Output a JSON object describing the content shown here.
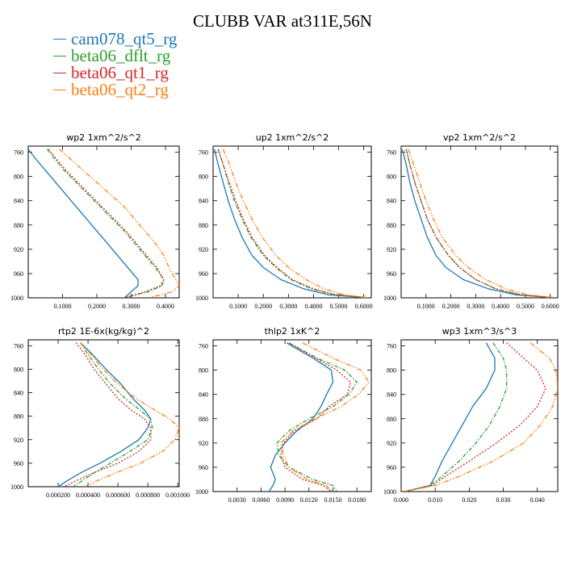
{
  "figure": {
    "title": "CLUBB VAR at311E,56N"
  },
  "legend": [
    {
      "name": "cam078_qt5_rg",
      "color": "#1f77b4"
    },
    {
      "name": "beta06_dflt_rg",
      "color": "#2ca02c"
    },
    {
      "name": "beta06_qt1_rg",
      "color": "#d62728"
    },
    {
      "name": "beta06_qt2_rg",
      "color": "#ff7f0e"
    }
  ],
  "chart_data": [
    {
      "type": "line",
      "title": "wp2  1xm^2/s^2",
      "xlim": [
        0.0,
        0.44
      ],
      "ylim": [
        1000,
        750
      ],
      "y_inverted": true,
      "xticks": [
        0.1,
        0.2,
        0.3,
        0.4
      ],
      "xtick_labels": [
        "0.1000",
        "0.2000",
        "0.3000",
        "0.4000"
      ],
      "yticks": [
        760,
        800,
        840,
        880,
        920,
        960,
        1000
      ],
      "y": [
        755,
        770,
        790,
        810,
        830,
        850,
        870,
        890,
        910,
        930,
        950,
        970,
        980,
        990,
        1000
      ],
      "series": [
        {
          "name": "cam078_qt5_rg",
          "x": [
            0.0,
            0.02,
            0.05,
            0.08,
            0.11,
            0.14,
            0.17,
            0.2,
            0.23,
            0.26,
            0.29,
            0.32,
            0.32,
            0.3,
            0.28
          ]
        },
        {
          "name": "beta06_dflt_rg",
          "x": [
            0.055,
            0.075,
            0.105,
            0.14,
            0.175,
            0.21,
            0.245,
            0.28,
            0.31,
            0.34,
            0.37,
            0.395,
            0.39,
            0.35,
            0.28
          ]
        },
        {
          "name": "beta06_qt1_rg",
          "x": [
            0.06,
            0.08,
            0.11,
            0.145,
            0.18,
            0.215,
            0.25,
            0.285,
            0.315,
            0.345,
            0.375,
            0.395,
            0.385,
            0.34,
            0.28
          ]
        },
        {
          "name": "beta06_qt2_rg",
          "x": [
            0.09,
            0.12,
            0.16,
            0.2,
            0.24,
            0.28,
            0.31,
            0.34,
            0.37,
            0.395,
            0.41,
            0.43,
            0.44,
            0.42,
            0.35
          ]
        }
      ]
    },
    {
      "type": "line",
      "title": "up2  1xm^2/s^2",
      "xlim": [
        0.0,
        0.63
      ],
      "ylim": [
        1000,
        750
      ],
      "y_inverted": true,
      "xticks": [
        0.1,
        0.2,
        0.3,
        0.4,
        0.5,
        0.6
      ],
      "xtick_labels": [
        "0.1000",
        "0.2000",
        "0.3000",
        "0.4000",
        "0.5000",
        "0.6000"
      ],
      "yticks": [
        760,
        800,
        840,
        880,
        920,
        960,
        1000
      ],
      "y": [
        755,
        780,
        810,
        840,
        870,
        900,
        930,
        950,
        970,
        985,
        995,
        1000
      ],
      "series": [
        {
          "name": "cam078_qt5_rg",
          "x": [
            0.005,
            0.02,
            0.04,
            0.06,
            0.085,
            0.115,
            0.155,
            0.2,
            0.27,
            0.36,
            0.46,
            0.62
          ]
        },
        {
          "name": "beta06_dflt_rg",
          "x": [
            0.02,
            0.04,
            0.06,
            0.085,
            0.115,
            0.15,
            0.2,
            0.25,
            0.31,
            0.39,
            0.48,
            0.62
          ]
        },
        {
          "name": "beta06_qt1_rg",
          "x": [
            0.02,
            0.04,
            0.065,
            0.09,
            0.12,
            0.155,
            0.205,
            0.255,
            0.315,
            0.4,
            0.49,
            0.62
          ]
        },
        {
          "name": "beta06_qt2_rg",
          "x": [
            0.04,
            0.065,
            0.09,
            0.12,
            0.155,
            0.195,
            0.25,
            0.3,
            0.37,
            0.44,
            0.52,
            0.62
          ]
        }
      ]
    },
    {
      "type": "line",
      "title": "vp2  1xm^2/s^2",
      "xlim": [
        0.0,
        0.63
      ],
      "ylim": [
        1000,
        750
      ],
      "y_inverted": true,
      "xticks": [
        0.1,
        0.2,
        0.3,
        0.4,
        0.5,
        0.6
      ],
      "xtick_labels": [
        "0.1000",
        "0.2000",
        "0.3000",
        "0.4000",
        "0.5000",
        "0.6000"
      ],
      "yticks": [
        760,
        800,
        840,
        880,
        920,
        960,
        1000
      ],
      "y": [
        755,
        780,
        810,
        840,
        870,
        900,
        930,
        950,
        970,
        985,
        995,
        1000
      ],
      "series": [
        {
          "name": "cam078_qt5_rg",
          "x": [
            0.005,
            0.02,
            0.035,
            0.055,
            0.08,
            0.105,
            0.14,
            0.18,
            0.25,
            0.35,
            0.46,
            0.62
          ]
        },
        {
          "name": "beta06_dflt_rg",
          "x": [
            0.02,
            0.035,
            0.055,
            0.08,
            0.105,
            0.14,
            0.19,
            0.235,
            0.3,
            0.38,
            0.48,
            0.62
          ]
        },
        {
          "name": "beta06_qt1_rg",
          "x": [
            0.02,
            0.035,
            0.055,
            0.08,
            0.105,
            0.14,
            0.19,
            0.235,
            0.3,
            0.38,
            0.48,
            0.62
          ]
        },
        {
          "name": "beta06_qt2_rg",
          "x": [
            0.03,
            0.05,
            0.075,
            0.1,
            0.13,
            0.165,
            0.22,
            0.27,
            0.34,
            0.42,
            0.51,
            0.62
          ]
        }
      ]
    },
    {
      "type": "line",
      "title": "rtp2  1E-6x(kg/kg)^2",
      "xlim": [
        0.0,
        0.00101
      ],
      "ylim": [
        1000,
        750
      ],
      "y_inverted": true,
      "xticks": [
        0.0002,
        0.0004,
        0.0006,
        0.0008,
        0.001
      ],
      "xtick_labels": [
        "0.000200",
        "0.000400",
        "0.000600",
        "0.000800",
        "0.001000"
      ],
      "yticks": [
        760,
        800,
        840,
        880,
        920,
        960,
        1000
      ],
      "y": [
        755,
        775,
        800,
        825,
        850,
        870,
        885,
        900,
        920,
        940,
        960,
        975,
        990,
        1000
      ],
      "series": [
        {
          "name": "cam078_qt5_rg",
          "x": [
            0.00035,
            0.00043,
            0.00052,
            0.00062,
            0.0007,
            0.00078,
            0.00082,
            0.0008,
            0.00074,
            0.00062,
            0.00048,
            0.00036,
            0.00026,
            0.0002
          ]
        },
        {
          "name": "beta06_dflt_rg",
          "x": [
            0.00035,
            0.0004,
            0.00047,
            0.00055,
            0.00065,
            0.00075,
            0.00082,
            0.00083,
            0.0008,
            0.00068,
            0.00055,
            0.00045,
            0.00036,
            0.0003
          ]
        },
        {
          "name": "beta06_qt1_rg",
          "x": [
            0.00032,
            0.00038,
            0.00044,
            0.00052,
            0.0006,
            0.00069,
            0.00078,
            0.00082,
            0.00082,
            0.00074,
            0.0006,
            0.00045,
            0.00032,
            0.00024
          ]
        },
        {
          "name": "beta06_qt2_rg",
          "x": [
            0.00035,
            0.00042,
            0.0005,
            0.0006,
            0.00072,
            0.00085,
            0.00095,
            0.00101,
            0.00098,
            0.0009,
            0.00075,
            0.0006,
            0.00046,
            0.00038
          ]
        }
      ]
    },
    {
      "type": "line",
      "title": "thlp2  1xK^2",
      "xlim": [
        0.0,
        0.0198
      ],
      "ylim": [
        1000,
        750
      ],
      "y_inverted": true,
      "xticks": [
        0.003,
        0.006,
        0.009,
        0.012,
        0.015,
        0.018
      ],
      "xtick_labels": [
        "0.0030",
        "0.0060",
        "0.0090",
        "0.0120",
        "0.0150",
        "0.0180"
      ],
      "yticks": [
        760,
        800,
        840,
        880,
        920,
        960,
        1000
      ],
      "y": [
        755,
        780,
        800,
        820,
        840,
        860,
        880,
        900,
        920,
        940,
        960,
        980,
        990,
        1000
      ],
      "series": [
        {
          "name": "cam078_qt5_rg",
          "x": [
            0.0092,
            0.0125,
            0.0148,
            0.015,
            0.0142,
            0.0135,
            0.0125,
            0.0105,
            0.009,
            0.0078,
            0.0072,
            0.0078,
            0.0075,
            0.007
          ]
        },
        {
          "name": "beta06_dflt_rg",
          "x": [
            0.0095,
            0.013,
            0.0165,
            0.018,
            0.017,
            0.015,
            0.012,
            0.0095,
            0.008,
            0.0082,
            0.0095,
            0.0125,
            0.015,
            0.0155
          ]
        },
        {
          "name": "beta06_qt1_rg",
          "x": [
            0.0095,
            0.0128,
            0.0155,
            0.0172,
            0.0168,
            0.0145,
            0.013,
            0.0102,
            0.0088,
            0.0085,
            0.009,
            0.0112,
            0.0138,
            0.0148
          ]
        },
        {
          "name": "beta06_qt2_rg",
          "x": [
            0.0112,
            0.015,
            0.0185,
            0.0195,
            0.0182,
            0.016,
            0.0128,
            0.01,
            0.0085,
            0.0088,
            0.0095,
            0.0118,
            0.0142,
            0.0148
          ]
        }
      ]
    },
    {
      "type": "line",
      "title": "wp3  1xm^3/s^3",
      "xlim": [
        0.0,
        0.046
      ],
      "ylim": [
        1000,
        750
      ],
      "y_inverted": true,
      "xticks": [
        0.0,
        0.01,
        0.02,
        0.03,
        0.04
      ],
      "xtick_labels": [
        "0.000",
        "0.010",
        "0.020",
        "0.030",
        "0.040"
      ],
      "yticks": [
        760,
        800,
        840,
        880,
        920,
        960,
        1000
      ],
      "y": [
        755,
        780,
        800,
        830,
        860,
        890,
        920,
        950,
        975,
        990,
        1000
      ],
      "series": [
        {
          "name": "cam078_qt5_rg",
          "x": [
            0.025,
            0.0275,
            0.0275,
            0.025,
            0.021,
            0.018,
            0.015,
            0.012,
            0.01,
            0.0085,
            0.001
          ]
        },
        {
          "name": "beta06_dflt_rg",
          "x": [
            0.027,
            0.03,
            0.031,
            0.031,
            0.029,
            0.026,
            0.022,
            0.017,
            0.012,
            0.0085,
            0.001
          ]
        },
        {
          "name": "beta06_qt1_rg",
          "x": [
            0.031,
            0.036,
            0.04,
            0.0425,
            0.04,
            0.035,
            0.028,
            0.02,
            0.013,
            0.009,
            0.001
          ]
        },
        {
          "name": "beta06_qt2_rg",
          "x": [
            0.038,
            0.0435,
            0.0455,
            0.046,
            0.0445,
            0.041,
            0.036,
            0.027,
            0.017,
            0.01,
            0.001
          ]
        }
      ]
    }
  ]
}
